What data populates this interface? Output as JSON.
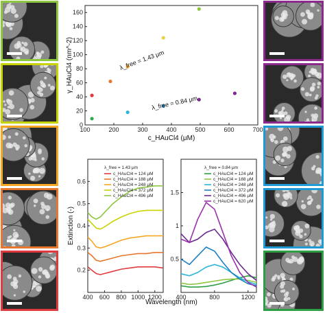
{
  "tiles": {
    "left": [
      {
        "color": "#8dc63f"
      },
      {
        "color": "#c8d400"
      },
      {
        "color": "#f5a623"
      },
      {
        "color": "#e8762c"
      },
      {
        "color": "#e03a3e"
      }
    ],
    "right": [
      {
        "color": "#8b2a8c"
      },
      {
        "color": "#8b2a8c"
      },
      {
        "color": "#1e9ad6"
      },
      {
        "color": "#1e9ad6"
      },
      {
        "color": "#2e9e44"
      }
    ]
  },
  "chart_data": [
    {
      "type": "scatter",
      "xlabel": "c_HAuCl4 (μM)",
      "ylabel": "γ_HAuCl4 (nm^-2)",
      "xlim": [
        100,
        700
      ],
      "ylim": [
        0,
        170
      ],
      "xticks": [
        100,
        200,
        300,
        400,
        500,
        600,
        700
      ],
      "yticks": [
        0,
        20,
        40,
        60,
        80,
        100,
        120,
        140,
        160
      ],
      "annotations": [
        "λ_free = 1.43 μm",
        "λ_free = 0.84 μm"
      ],
      "points": [
        {
          "x": 124,
          "y": 9,
          "color": "#2fa84f"
        },
        {
          "x": 124,
          "y": 42,
          "color": "#e03a3e"
        },
        {
          "x": 188,
          "y": 62,
          "color": "#e8762c"
        },
        {
          "x": 248,
          "y": 18,
          "color": "#2bb5d8"
        },
        {
          "x": 248,
          "y": 83,
          "color": "#f5a623"
        },
        {
          "x": 372,
          "y": 27,
          "color": "#2489c9"
        },
        {
          "x": 372,
          "y": 124,
          "color": "#e3d33c"
        },
        {
          "x": 496,
          "y": 36,
          "color": "#7b2a8e"
        },
        {
          "x": 496,
          "y": 165,
          "color": "#8dc63f"
        },
        {
          "x": 620,
          "y": 45,
          "color": "#7b2a8e"
        }
      ]
    },
    {
      "type": "line",
      "title": "λ_free = 1.43 μm",
      "xlabel": "Wavelength (nm)",
      "ylabel": "Extinction (-)",
      "xlim": [
        400,
        1300
      ],
      "ylim": [
        0.1,
        0.7
      ],
      "xticks": [
        400,
        600,
        800,
        1000,
        1200
      ],
      "yticks": [
        0.2,
        0.3,
        0.4,
        0.5,
        0.6
      ],
      "series": [
        {
          "name": "c_HAuCl4 = 124 μM",
          "color": "#e03a3e",
          "x": [
            400,
            450,
            500,
            550,
            600,
            700,
            800,
            900,
            1000,
            1100,
            1200,
            1300
          ],
          "values": [
            0.215,
            0.2,
            0.185,
            0.18,
            0.185,
            0.195,
            0.205,
            0.21,
            0.215,
            0.215,
            0.215,
            0.21
          ]
        },
        {
          "name": "c_HAuCl4 = 188 μM",
          "color": "#e8762c",
          "x": [
            400,
            450,
            500,
            550,
            600,
            700,
            800,
            900,
            1000,
            1100,
            1200,
            1300
          ],
          "values": [
            0.28,
            0.265,
            0.245,
            0.24,
            0.245,
            0.255,
            0.265,
            0.27,
            0.275,
            0.275,
            0.28,
            0.28
          ]
        },
        {
          "name": "c_HAuCl4 = 248 μM",
          "color": "#f5a623",
          "x": [
            400,
            450,
            500,
            550,
            600,
            700,
            800,
            900,
            1000,
            1100,
            1200,
            1300
          ],
          "values": [
            0.35,
            0.33,
            0.305,
            0.3,
            0.305,
            0.32,
            0.335,
            0.345,
            0.35,
            0.355,
            0.355,
            0.355
          ]
        },
        {
          "name": "c_HAuCl4 = 372 μM",
          "color": "#c8d400",
          "x": [
            400,
            450,
            500,
            550,
            600,
            700,
            800,
            900,
            1000,
            1100,
            1200,
            1300
          ],
          "values": [
            0.43,
            0.41,
            0.39,
            0.385,
            0.395,
            0.42,
            0.44,
            0.455,
            0.465,
            0.47,
            0.47,
            0.47
          ]
        },
        {
          "name": "c_HAuCl4 = 496 μM",
          "color": "#8dc63f",
          "x": [
            400,
            450,
            500,
            550,
            600,
            700,
            800,
            900,
            1000,
            1100,
            1200,
            1300
          ],
          "values": [
            0.46,
            0.44,
            0.43,
            0.44,
            0.46,
            0.5,
            0.53,
            0.555,
            0.57,
            0.575,
            0.58,
            0.58
          ]
        }
      ]
    },
    {
      "type": "line",
      "title": "λ_free = 0.84 μm",
      "xlabel": "Wavelength (nm)",
      "xlim": [
        400,
        1300
      ],
      "ylim": [
        0.0,
        2.0
      ],
      "xticks": [
        400,
        800,
        1200
      ],
      "yticks": [
        0.5,
        1.0,
        1.5
      ],
      "series": [
        {
          "name": "c_HAuCl4 = 124 μM",
          "color": "#2e9e44",
          "x": [
            400,
            500,
            600,
            700,
            800,
            900,
            1000,
            1100,
            1200,
            1300
          ],
          "values": [
            0.1,
            0.08,
            0.08,
            0.09,
            0.11,
            0.14,
            0.18,
            0.22,
            0.25,
            0.22
          ]
        },
        {
          "name": "c_HAuCl4 = 188 μM",
          "color": "#8dc63f",
          "x": [
            400,
            500,
            600,
            700,
            800,
            900,
            1000,
            1100,
            1200,
            1300
          ],
          "values": [
            0.14,
            0.12,
            0.13,
            0.15,
            0.17,
            0.19,
            0.2,
            0.2,
            0.18,
            0.15
          ]
        },
        {
          "name": "c_HAuCl4 = 248 μM",
          "color": "#2bb5d8",
          "x": [
            400,
            500,
            600,
            700,
            800,
            900,
            1000,
            1100,
            1200,
            1300
          ],
          "values": [
            0.28,
            0.25,
            0.3,
            0.38,
            0.42,
            0.38,
            0.3,
            0.22,
            0.16,
            0.12
          ]
        },
        {
          "name": "c_HAuCl4 = 372 μM",
          "color": "#1e7fc4",
          "x": [
            400,
            500,
            600,
            700,
            800,
            900,
            1000,
            1100,
            1200,
            1300
          ],
          "values": [
            0.5,
            0.42,
            0.55,
            0.68,
            0.62,
            0.45,
            0.3,
            0.2,
            0.13,
            0.1
          ]
        },
        {
          "name": "c_HAuCl4 = 496 μM",
          "color": "#6a2a90",
          "x": [
            400,
            500,
            600,
            700,
            800,
            900,
            1000,
            1100,
            1200,
            1300
          ],
          "values": [
            0.88,
            0.75,
            0.8,
            0.9,
            0.95,
            0.8,
            0.6,
            0.42,
            0.28,
            0.18
          ]
        },
        {
          "name": "c_HAuCl4 = 620 μM",
          "color": "#9b2fae",
          "x": [
            400,
            500,
            600,
            700,
            800,
            900,
            1000,
            1100,
            1200,
            1300
          ],
          "values": [
            0.8,
            0.75,
            1.1,
            1.35,
            1.25,
            0.9,
            0.55,
            0.3,
            0.15,
            0.08
          ]
        }
      ]
    }
  ]
}
